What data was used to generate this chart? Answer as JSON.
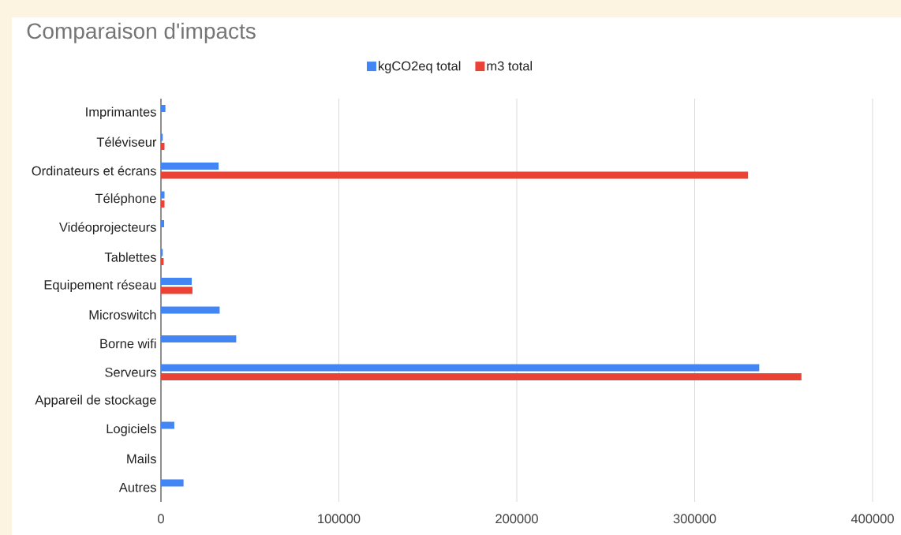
{
  "chart_data": {
    "type": "bar",
    "orientation": "horizontal",
    "title": "Comparaison d'impacts",
    "categories": [
      "Imprimantes",
      "Téléviseur",
      "Ordinateurs et écrans",
      "Téléphone",
      "Vidéoprojecteurs",
      "Tablettes",
      "Equipement réseau",
      "Microswitch",
      "Borne wifi",
      "Serveurs",
      "Appareil de stockage",
      "Logiciels",
      "Mails",
      "Autres"
    ],
    "series": [
      {
        "name": "kgCO2eq total",
        "color": "#4285f4",
        "values": [
          2500,
          1000,
          32400,
          2000,
          1800,
          1000,
          17300,
          33000,
          42300,
          336400,
          null,
          7500,
          null,
          12700
        ]
      },
      {
        "name": "m3 total",
        "color": "#ea4335",
        "values": [
          null,
          2000,
          330000,
          2000,
          null,
          1500,
          17700,
          null,
          null,
          360000,
          null,
          null,
          null,
          null
        ]
      }
    ],
    "xlim": [
      0,
      400000
    ],
    "xticks": [
      0,
      100000,
      200000,
      300000,
      400000
    ],
    "grid": "x",
    "legend": "top"
  }
}
